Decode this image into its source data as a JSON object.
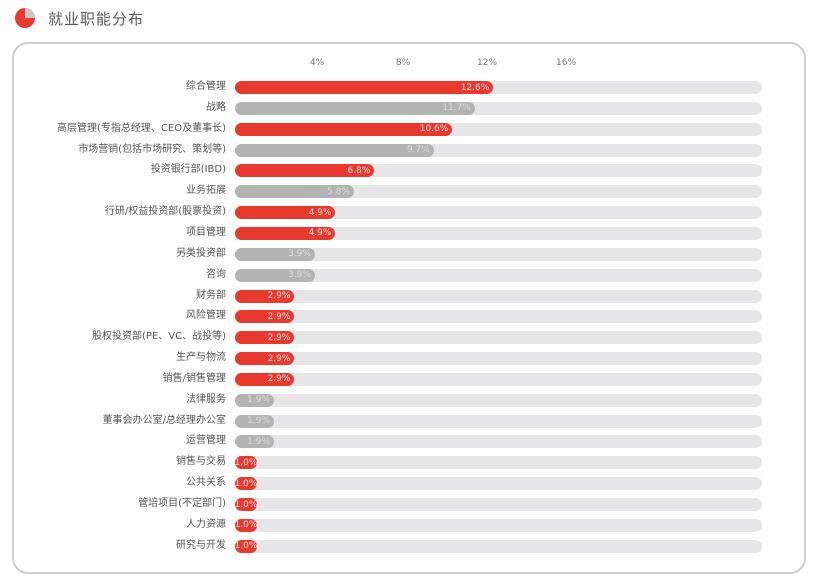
{
  "header": {
    "title": "就业职能分布",
    "icon": "pie-chart-icon"
  },
  "colors": {
    "accent": "#e8392f",
    "secondary": "#b3b3b3",
    "track": "#e6e5e7"
  },
  "axis": {
    "ticks": [
      "4%",
      "8%",
      "12%",
      "16%"
    ]
  },
  "chart_data": {
    "type": "bar",
    "orientation": "horizontal",
    "title": "就业职能分布",
    "xlabel": "",
    "ylabel": "",
    "xlim": [
      0,
      25.7
    ],
    "x_ticks": [
      4,
      8,
      12,
      16
    ],
    "grid": false,
    "legend": null,
    "categories": [
      "综合管理",
      "战略",
      "高层管理(专指总经理、CEO及董事长)",
      "市场营销(包括市场研究、策划等)",
      "投资银行部(IBD)",
      "业务拓展",
      "行研/权益投资部(股票投资)",
      "项目管理",
      "另类投资部",
      "咨询",
      "财务部",
      "风险管理",
      "股权投资部(PE、VC、战投等)",
      "生产与物流",
      "销售/销售管理",
      "法律服务",
      "董事会办公室/总经理办公室",
      "运营管理",
      "销售与交易",
      "公共关系",
      "管培项目(不定部门)",
      "人力资源",
      "研究与开发"
    ],
    "values": [
      12.6,
      11.7,
      10.6,
      9.7,
      6.8,
      5.8,
      4.9,
      4.9,
      3.9,
      3.9,
      2.9,
      2.9,
      2.9,
      2.9,
      2.9,
      1.9,
      1.9,
      1.9,
      1.0,
      1.0,
      1.0,
      1.0,
      1.0
    ],
    "value_labels": [
      "12.6%",
      "11.7%",
      "10.6%",
      "9.7%",
      "6.8%",
      "5.8%",
      "4.9%",
      "4.9%",
      "3.9%",
      "3.9%",
      "2.9%",
      "2.9%",
      "2.9%",
      "2.9%",
      "2.9%",
      "1.9%",
      "1.9%",
      "1.9%",
      "1.0%",
      "1.0%",
      "1.0%",
      "1.0%",
      "1.0%"
    ],
    "bar_colors": [
      "red",
      "gray",
      "red",
      "gray",
      "red",
      "gray",
      "red",
      "red",
      "gray",
      "gray",
      "red",
      "red",
      "red",
      "red",
      "red",
      "gray",
      "gray",
      "gray",
      "red",
      "red",
      "red",
      "red",
      "red"
    ]
  }
}
